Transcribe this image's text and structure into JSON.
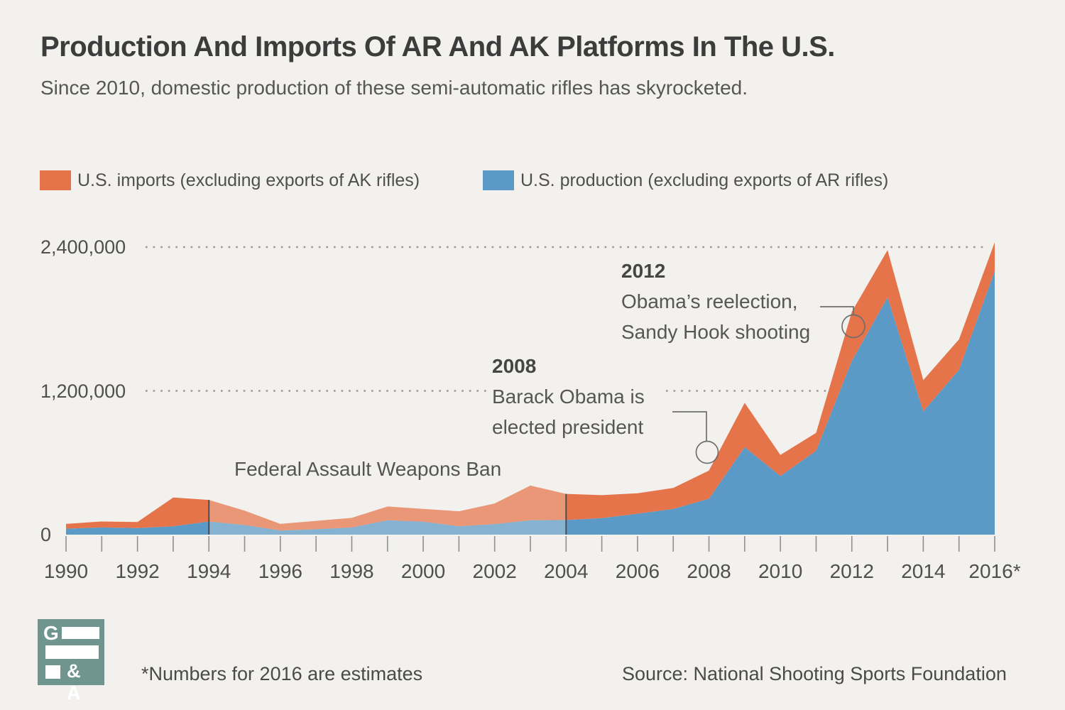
{
  "title": "Production And Imports Of AR And AK Platforms In The U.S.",
  "subtitle": "Since 2010, domestic production of these semi-automatic rifles has skyrocketed.",
  "colors": {
    "background": "#f2f1ed",
    "imports_orange": "#e5744a",
    "production_blue": "#5b9ac7",
    "faded_area_opacity": 0.72,
    "grid_dots": "#999999",
    "ban_rule": "#4d4d4d",
    "annotation_stroke": "#6e6e6e",
    "logo_teal": "#70958f"
  },
  "legend": [
    {
      "label": "U.S. imports (excluding exports of AK rifles)",
      "color": "#e5744a"
    },
    {
      "label": "U.S. production (excluding exports of AR rifles)",
      "color": "#5b9ac7"
    }
  ],
  "chart_data": {
    "type": "area",
    "stacked": true,
    "x": [
      1990,
      1991,
      1992,
      1993,
      1994,
      1995,
      1996,
      1997,
      1998,
      1999,
      2000,
      2001,
      2002,
      2003,
      2004,
      2005,
      2006,
      2007,
      2008,
      2009,
      2010,
      2011,
      2012,
      2013,
      2014,
      2015,
      2016
    ],
    "series": [
      {
        "name": "U.S. production (excluding exports of AR rifles)",
        "color": "#5b9ac7",
        "values": [
          50000,
          60000,
          55000,
          70000,
          110000,
          80000,
          35000,
          45000,
          60000,
          120000,
          108000,
          70000,
          88000,
          120000,
          122000,
          138000,
          175000,
          215000,
          300000,
          730000,
          490000,
          700000,
          1450000,
          1980000,
          1030000,
          1375000,
          2200000
        ]
      },
      {
        "name": "U.S. imports (excluding exports of AK rifles)",
        "color": "#e5744a",
        "values": [
          40000,
          50000,
          50000,
          240000,
          180000,
          120000,
          55000,
          70000,
          80000,
          115000,
          107000,
          125000,
          172000,
          290000,
          218000,
          192000,
          170000,
          175000,
          235000,
          370000,
          175000,
          150000,
          410000,
          395000,
          260000,
          255000,
          240000
        ]
      }
    ],
    "stack_note": "production (blue) on bottom, imports (orange) stacked on top",
    "ylim": [
      0,
      2400000
    ],
    "yticks": [
      {
        "value": 0,
        "label": "0"
      },
      {
        "value": 1200000,
        "label": "1,200,000"
      },
      {
        "value": 2400000,
        "label": "2,400,000"
      }
    ],
    "xtick_labels": [
      "1990",
      "1992",
      "1994",
      "1996",
      "1998",
      "2000",
      "2002",
      "2004",
      "2006",
      "2008",
      "2010",
      "2012",
      "2014",
      "2016*"
    ],
    "grid": "dotted-horizontal",
    "legend_position": "top",
    "ban_period": {
      "start_year": 1994,
      "end_year": 2004,
      "label": "Federal Assault Weapons Ban",
      "style": "area drawn faded between two vertical rules"
    },
    "annotations": [
      {
        "year": 2008,
        "title": "2008",
        "lines": [
          "Barack Obama is",
          "elected president"
        ]
      },
      {
        "year": 2012,
        "title": "2012",
        "lines": [
          "Obama’s reelection,",
          "Sandy Hook shooting"
        ]
      }
    ]
  },
  "footer": {
    "footnote": "*Numbers for 2016 are estimates",
    "source": "Source: National Shooting Sports Foundation",
    "logo": {
      "g": "G",
      "ga": "& A"
    }
  }
}
